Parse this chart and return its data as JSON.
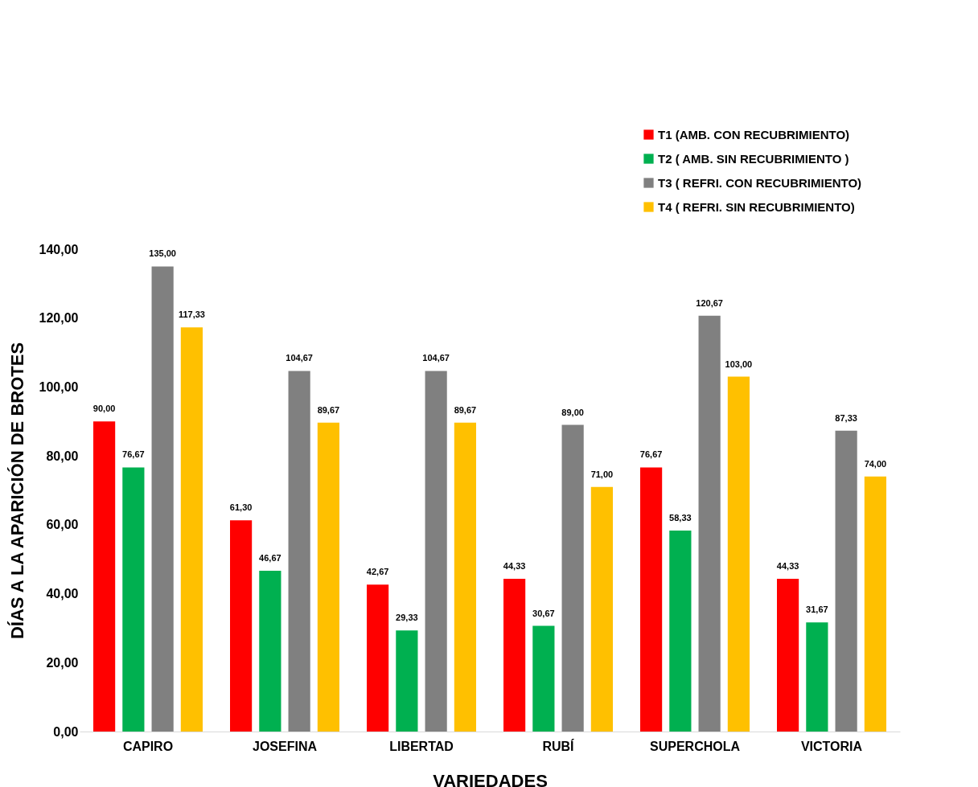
{
  "chart_data": {
    "type": "bar",
    "xlabel": "VARIEDADES",
    "ylabel": "DÍAS A LA APARICIÓN DE  BROTES",
    "categories": [
      "CAPIRO",
      "JOSEFINA",
      "LIBERTAD",
      "RUBÍ",
      "SUPERCHOLA",
      "VICTORIA"
    ],
    "series": [
      {
        "name": "T1 (AMB. CON RECUBRIMIENTO)",
        "color": "#ff0000",
        "values": [
          90,
          61.3,
          42.67,
          44.33,
          76.67,
          44.33
        ],
        "value_labels": [
          "90,00",
          "61,30",
          "42,67",
          "44,33",
          "76,67",
          "44,33"
        ]
      },
      {
        "name": "T2 ( AMB. SIN RECUBRIMIENTO )",
        "color": "#00b050",
        "values": [
          76.67,
          46.67,
          29.33,
          30.67,
          58.33,
          31.67
        ],
        "value_labels": [
          "76,67",
          "46,67",
          "29,33",
          "30,67",
          "58,33",
          "31,67"
        ]
      },
      {
        "name": "T3 ( REFRI. CON RECUBRIMIENTO)",
        "color": "#808080",
        "values": [
          135,
          104.67,
          104.67,
          89,
          120.67,
          87.33
        ],
        "value_labels": [
          "135,00",
          "104,67",
          "104,67",
          "89,00",
          "120,67",
          "87,33"
        ]
      },
      {
        "name": "T4 ( REFRI. SIN RECUBRIMIENTO)",
        "color": "#ffc000",
        "values": [
          117.33,
          89.67,
          89.67,
          71,
          103,
          74
        ],
        "value_labels": [
          "117,33",
          "89,67",
          "89,67",
          "71,00",
          "103,00",
          "74,00"
        ]
      }
    ],
    "ylim": [
      0,
      140
    ],
    "yticks": [
      {
        "value": 0,
        "label": "0,00"
      },
      {
        "value": 20,
        "label": "20,00"
      },
      {
        "value": 40,
        "label": "40,00"
      },
      {
        "value": 60,
        "label": "60,00"
      },
      {
        "value": 80,
        "label": "80,00"
      },
      {
        "value": 100,
        "label": "100,00"
      },
      {
        "value": 120,
        "label": "120,00"
      },
      {
        "value": 140,
        "label": "140,00"
      }
    ],
    "grid": false,
    "legend": "top right"
  }
}
